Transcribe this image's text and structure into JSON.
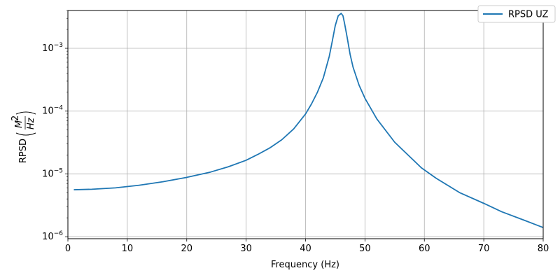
{
  "chart_data": {
    "type": "line",
    "title": "",
    "xlabel": "Frequency (Hz)",
    "ylabel": "RPSD",
    "ylabel_units": {
      "numerator": "M",
      "numerator_power": "2",
      "denominator": "Hz"
    },
    "xlim": [
      0,
      80
    ],
    "ylim": [
      9.3e-07,
      0.004
    ],
    "yscale": "log",
    "grid": true,
    "legend_position": "top-right",
    "x_ticks": [
      {
        "value": 0,
        "label": "0"
      },
      {
        "value": 10,
        "label": "10"
      },
      {
        "value": 20,
        "label": "20"
      },
      {
        "value": 30,
        "label": "30"
      },
      {
        "value": 40,
        "label": "40"
      },
      {
        "value": 50,
        "label": "50"
      },
      {
        "value": 60,
        "label": "60"
      },
      {
        "value": 70,
        "label": "70"
      },
      {
        "value": 80,
        "label": "80"
      }
    ],
    "y_ticks": [
      {
        "value": 1e-06,
        "base": "10",
        "exp": "−6"
      },
      {
        "value": 1e-05,
        "base": "10",
        "exp": "−5"
      },
      {
        "value": 0.0001,
        "base": "10",
        "exp": "−4"
      },
      {
        "value": 0.001,
        "base": "10",
        "exp": "−3"
      }
    ],
    "series": [
      {
        "name": "RPSD UZ",
        "color": "#1f77b4",
        "x": [
          1,
          4,
          8,
          12,
          16,
          20,
          24,
          27,
          30,
          32,
          34,
          36,
          38,
          40,
          41,
          42,
          43,
          44,
          44.5,
          45,
          45.5,
          46,
          46.3,
          46.6,
          47,
          47.5,
          48,
          49,
          50,
          52,
          55,
          59.5,
          62,
          66,
          70,
          73,
          77,
          80
        ],
        "y": [
          5.6e-06,
          5.7e-06,
          6e-06,
          6.6e-06,
          7.5e-06,
          8.8e-06,
          1.07e-05,
          1.3e-05,
          1.65e-05,
          2.05e-05,
          2.6e-05,
          3.5e-05,
          5.2e-05,
          9e-05,
          0.00013,
          0.0002,
          0.00034,
          0.00075,
          0.0013,
          0.0023,
          0.0033,
          0.0036,
          0.0033,
          0.0024,
          0.0015,
          0.0008,
          0.0005,
          0.00026,
          0.00016,
          7.5e-05,
          3.2e-05,
          1.25e-05,
          8.5e-06,
          5e-06,
          3.4e-06,
          2.5e-06,
          1.8e-06,
          1.4e-06
        ]
      }
    ]
  }
}
